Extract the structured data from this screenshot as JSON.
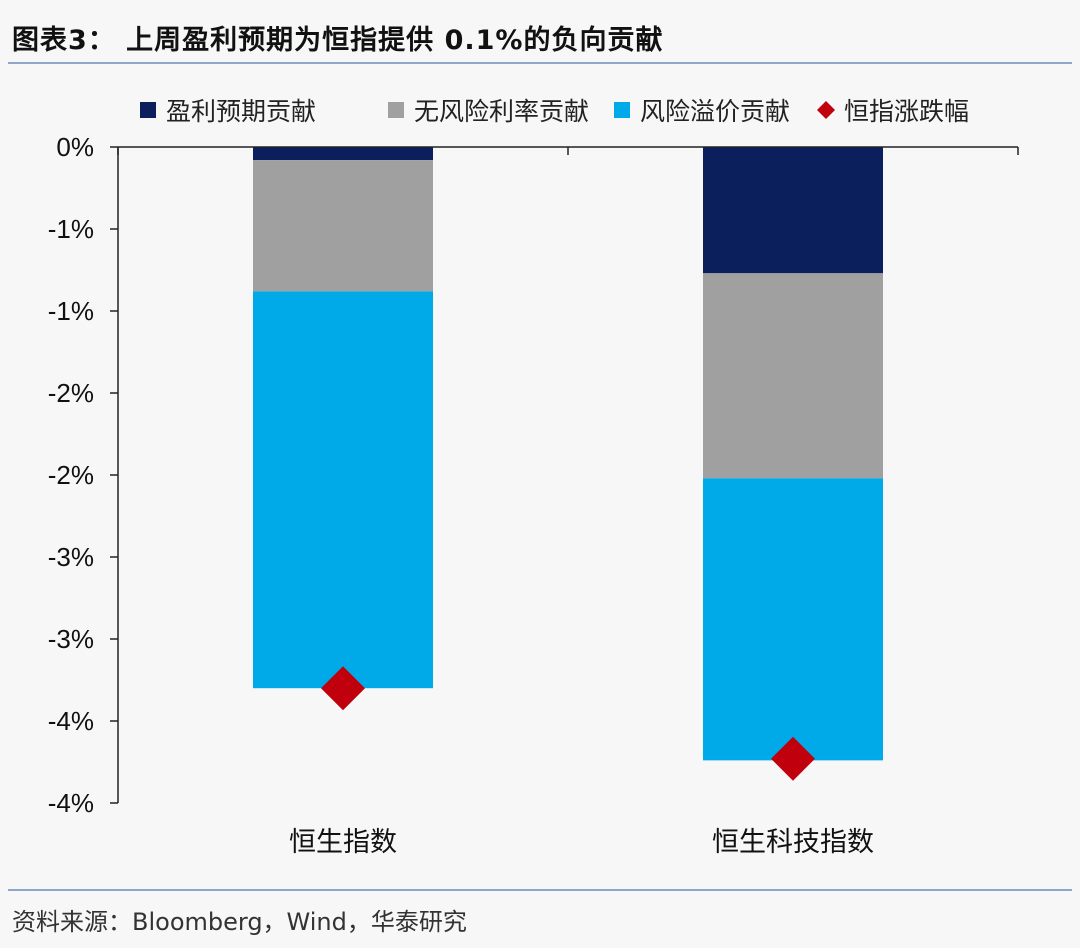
{
  "header": {
    "title": "图表3： 上周盈利预期为恒指提供 0.1%的负向贡献"
  },
  "footer": {
    "source": "资料来源：Bloomberg，Wind，华泰研究"
  },
  "chart_data": {
    "type": "bar",
    "stacked": true,
    "categories": [
      "恒生指数",
      "恒生科技指数"
    ],
    "series": [
      {
        "name": "盈利预期贡献",
        "color": "#0b1f5c",
        "values": [
          -0.08,
          -0.77
        ]
      },
      {
        "name": "无风险利率贡献",
        "color": "#a0a0a0",
        "values": [
          -0.8,
          -1.25
        ]
      },
      {
        "name": "风险溢价贡献",
        "color": "#00aae8",
        "values": [
          -2.42,
          -1.72
        ]
      }
    ],
    "markers": {
      "name": "恒指涨跌幅",
      "color": "#c0000c",
      "shape": "diamond",
      "values": [
        -3.3,
        -3.73
      ]
    },
    "ytick_labels": [
      "0%",
      "-1%",
      "-1%",
      "-2%",
      "-2%",
      "-3%",
      "-3%",
      "-4%",
      "-4%"
    ],
    "ylim": [
      -4.0,
      0
    ],
    "ytick_step": 0.5,
    "legend_position": "top",
    "grid": false
  }
}
